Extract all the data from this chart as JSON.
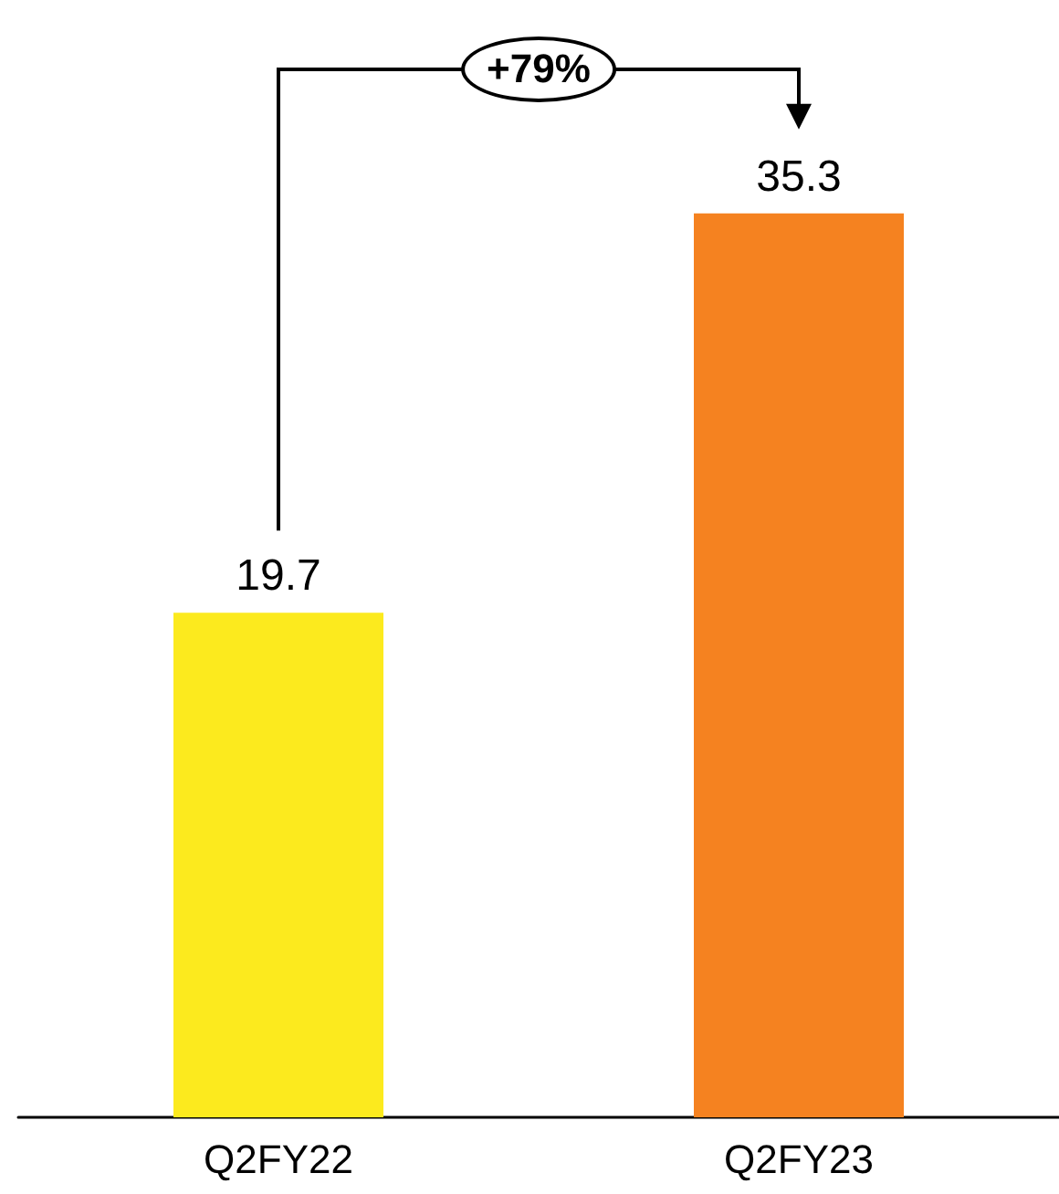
{
  "chart_data": {
    "type": "bar",
    "categories": [
      "Q2FY22",
      "Q2FY23"
    ],
    "values": [
      19.7,
      35.3
    ],
    "colors": [
      "#fcea1e",
      "#f58220"
    ],
    "data_labels": true,
    "annotations": [
      "+79%"
    ]
  }
}
